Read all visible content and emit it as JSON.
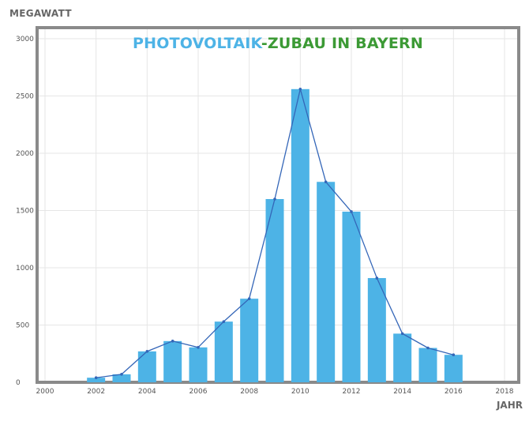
{
  "chart_data": {
    "type": "bar",
    "title_part1": "PHOTOVOLTAIK",
    "title_part2": "-ZUBAU IN BAYERN",
    "ylabel": "MEGAWATT",
    "xlabel": "JAHR",
    "ylim": [
      0,
      3000
    ],
    "xlim": [
      2000,
      2018
    ],
    "y_ticks": [
      "0",
      "500",
      "1000",
      "1500",
      "2000",
      "2500",
      "3000"
    ],
    "x_ticks": [
      "2000",
      "2002",
      "2004",
      "2006",
      "2008",
      "2010",
      "2012",
      "2014",
      "2016",
      "2018"
    ],
    "categories": [
      2002,
      2003,
      2004,
      2005,
      2006,
      2007,
      2008,
      2009,
      2010,
      2011,
      2012,
      2013,
      2014,
      2015,
      2016
    ],
    "values": [
      40,
      70,
      270,
      360,
      305,
      530,
      730,
      1600,
      2560,
      1750,
      1490,
      910,
      425,
      300,
      240
    ],
    "overlay_line": true,
    "grid": true,
    "colors": {
      "bar": "#4db3e6",
      "line": "#3466b8",
      "frame": "#8a8a8a",
      "grid": "#e6e6e6",
      "title_part1": "#4db3e6",
      "title_part2": "#3c9a35"
    }
  }
}
